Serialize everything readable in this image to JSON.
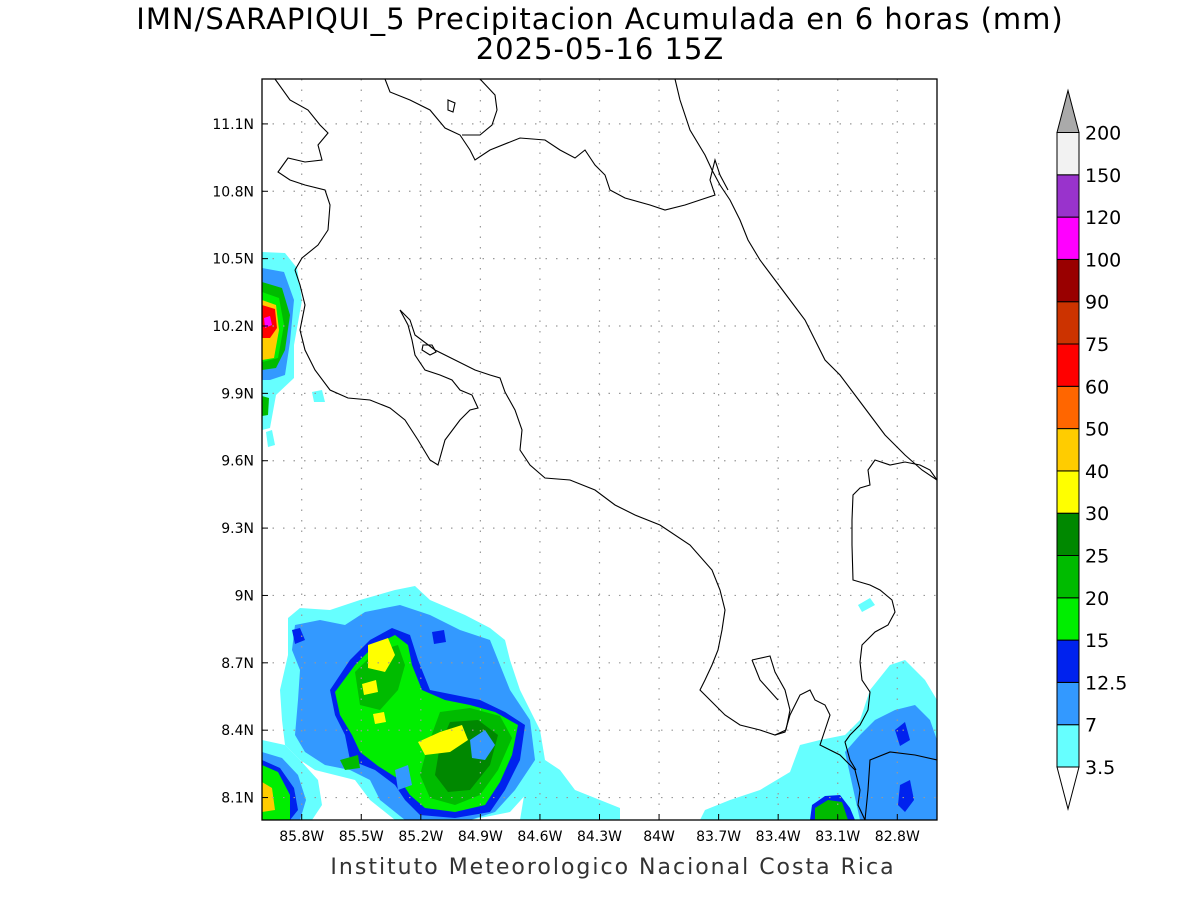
{
  "header": {
    "title": "IMN/SARAPIQUI_5 Precipitacion Acumulada en 6 horas (mm)",
    "subtitle": "2025-05-16 15Z"
  },
  "footer": {
    "text": "Instituto Meteorologico Nacional Costa Rica"
  },
  "map": {
    "lon_range": [
      -86.0,
      -82.6
    ],
    "lat_range": [
      8.0,
      11.3
    ],
    "lon_ticks": [
      {
        "value": -85.8,
        "label": "85.8W"
      },
      {
        "value": -85.5,
        "label": "85.5W"
      },
      {
        "value": -85.2,
        "label": "85.2W"
      },
      {
        "value": -84.9,
        "label": "84.9W"
      },
      {
        "value": -84.6,
        "label": "84.6W"
      },
      {
        "value": -84.3,
        "label": "84.3W"
      },
      {
        "value": -84.0,
        "label": "84W"
      },
      {
        "value": -83.7,
        "label": "83.7W"
      },
      {
        "value": -83.4,
        "label": "83.4W"
      },
      {
        "value": -83.1,
        "label": "83.1W"
      },
      {
        "value": -82.8,
        "label": "82.8W"
      }
    ],
    "lat_ticks": [
      {
        "value": 8.1,
        "label": "8.1N"
      },
      {
        "value": 8.4,
        "label": "8.4N"
      },
      {
        "value": 8.7,
        "label": "8.7N"
      },
      {
        "value": 9.0,
        "label": "9N"
      },
      {
        "value": 9.3,
        "label": "9.3N"
      },
      {
        "value": 9.6,
        "label": "9.6N"
      },
      {
        "value": 9.9,
        "label": "9.9N"
      },
      {
        "value": 10.2,
        "label": "10.2N"
      },
      {
        "value": 10.5,
        "label": "10.5N"
      },
      {
        "value": 10.8,
        "label": "10.8N"
      },
      {
        "value": 11.1,
        "label": "11.1N"
      }
    ],
    "grid": true
  },
  "colorbar": {
    "levels": [
      "3.5",
      "7",
      "12.5",
      "15",
      "20",
      "25",
      "30",
      "40",
      "50",
      "60",
      "75",
      "90",
      "100",
      "120",
      "150",
      "200"
    ],
    "colors": [
      "#66ffff",
      "#3399ff",
      "#0022ee",
      "#00ee00",
      "#00bb00",
      "#008800",
      "#ffff00",
      "#ffcc00",
      "#ff6600",
      "#ff0000",
      "#cc3300",
      "#990000",
      "#ff00ff",
      "#9933cc",
      "#f2f2f2"
    ],
    "over_color": "#aaaaaa",
    "under_color": "#ffffff"
  }
}
